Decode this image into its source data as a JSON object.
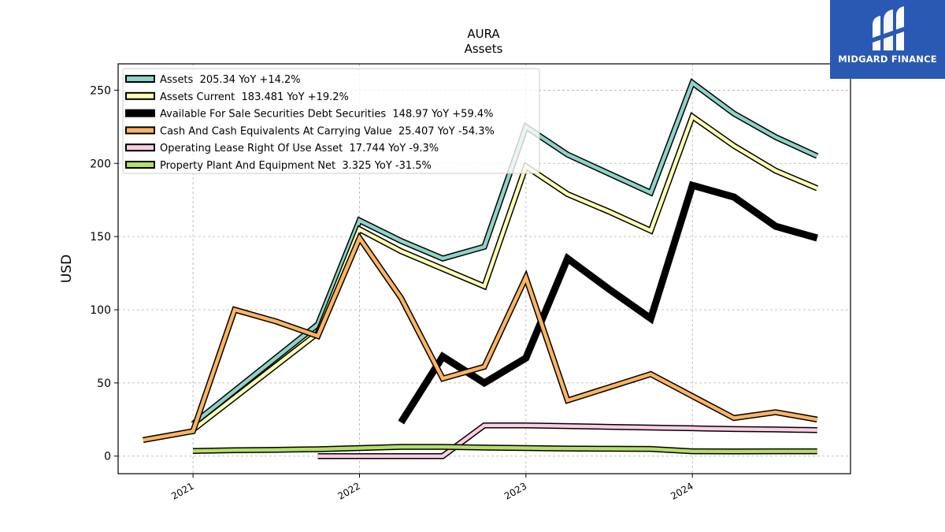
{
  "chart_data": {
    "type": "line",
    "title": "AURA",
    "subtitle": "Assets",
    "xlabel": "",
    "ylabel": "USD",
    "x_ticks": [
      {
        "label": "2021",
        "x": 2021.0
      },
      {
        "label": "2022",
        "x": 2022.0
      },
      {
        "label": "2023",
        "x": 2023.0
      },
      {
        "label": "2024",
        "x": 2024.0
      }
    ],
    "xlim": [
      2020.55,
      2024.95
    ],
    "ylim": [
      -12,
      268
    ],
    "y_ticks": [
      0,
      50,
      100,
      150,
      200,
      250
    ],
    "grid": true,
    "legend_position": "top-left",
    "series": [
      {
        "name": "Assets  205.34 YoY +14.2%",
        "color": "#8dd3c7",
        "style": "outlined",
        "points": [
          [
            2021.0,
            22
          ],
          [
            2021.75,
            90
          ],
          [
            2022.0,
            161
          ],
          [
            2022.25,
            147
          ],
          [
            2022.5,
            135
          ],
          [
            2022.75,
            143
          ],
          [
            2023.0,
            225
          ],
          [
            2023.25,
            206
          ],
          [
            2023.5,
            193
          ],
          [
            2023.75,
            180
          ],
          [
            2024.0,
            255
          ],
          [
            2024.25,
            234
          ],
          [
            2024.5,
            218
          ],
          [
            2024.75,
            205
          ]
        ]
      },
      {
        "name": "Assets Current  183.481 YoY +19.2%",
        "color": "#ffffb3",
        "style": "outlined",
        "points": [
          [
            2021.0,
            18
          ],
          [
            2021.75,
            84
          ],
          [
            2022.0,
            155
          ],
          [
            2022.25,
            140
          ],
          [
            2022.5,
            128
          ],
          [
            2022.75,
            116
          ],
          [
            2023.0,
            198
          ],
          [
            2023.25,
            179
          ],
          [
            2023.5,
            167
          ],
          [
            2023.75,
            154
          ],
          [
            2024.0,
            232
          ],
          [
            2024.25,
            212
          ],
          [
            2024.5,
            195
          ],
          [
            2024.75,
            183
          ]
        ]
      },
      {
        "name": "Available For Sale Securities Debt Securities  148.97 YoY +59.4%",
        "color": "#000000",
        "style": "thick",
        "points": [
          [
            2022.25,
            23
          ],
          [
            2022.5,
            68
          ],
          [
            2022.75,
            50
          ],
          [
            2023.0,
            67
          ],
          [
            2023.25,
            135
          ],
          [
            2023.5,
            114
          ],
          [
            2023.75,
            94
          ],
          [
            2024.0,
            185
          ],
          [
            2024.25,
            177
          ],
          [
            2024.5,
            157
          ],
          [
            2024.75,
            149
          ]
        ]
      },
      {
        "name": "Cash And Cash Equivalents At Carrying Value  25.407 YoY -54.3%",
        "color": "#fdb462",
        "style": "outlined",
        "points": [
          [
            2020.7,
            11
          ],
          [
            2021.0,
            17
          ],
          [
            2021.25,
            100
          ],
          [
            2021.5,
            92
          ],
          [
            2021.75,
            82
          ],
          [
            2022.0,
            149
          ],
          [
            2022.25,
            108
          ],
          [
            2022.5,
            53
          ],
          [
            2022.75,
            61
          ],
          [
            2023.0,
            122
          ],
          [
            2023.25,
            38
          ],
          [
            2023.5,
            47
          ],
          [
            2023.75,
            56
          ],
          [
            2024.0,
            41
          ],
          [
            2024.25,
            26
          ],
          [
            2024.5,
            30
          ],
          [
            2024.75,
            25
          ]
        ]
      },
      {
        "name": "Operating Lease Right Of Use Asset  17.744 YoY -9.3%",
        "color": "#fccde5",
        "style": "outlined",
        "points": [
          [
            2021.75,
            0
          ],
          [
            2022.0,
            0
          ],
          [
            2022.25,
            0
          ],
          [
            2022.5,
            0
          ],
          [
            2022.75,
            21
          ],
          [
            2023.0,
            21
          ],
          [
            2023.25,
            20.5
          ],
          [
            2023.5,
            20
          ],
          [
            2023.75,
            19.5
          ],
          [
            2024.0,
            19
          ],
          [
            2024.25,
            18.5
          ],
          [
            2024.5,
            18.2
          ],
          [
            2024.75,
            17.7
          ]
        ]
      },
      {
        "name": "Property Plant And Equipment Net  3.325 YoY -31.5%",
        "color": "#b3de69",
        "style": "outlined",
        "points": [
          [
            2021.0,
            3.5
          ],
          [
            2021.25,
            4
          ],
          [
            2021.5,
            4.3
          ],
          [
            2021.75,
            4.7
          ],
          [
            2022.0,
            5.5
          ],
          [
            2022.25,
            6.3
          ],
          [
            2022.5,
            6.3
          ],
          [
            2022.75,
            5.8
          ],
          [
            2023.0,
            5.5
          ],
          [
            2023.25,
            5.2
          ],
          [
            2023.5,
            5.0
          ],
          [
            2023.75,
            4.9
          ],
          [
            2024.0,
            3.3
          ],
          [
            2024.25,
            3.2
          ],
          [
            2024.5,
            3.3
          ],
          [
            2024.75,
            3.3
          ]
        ]
      }
    ]
  },
  "brand": {
    "name": "MIDGARD FINANCE",
    "logo_icon": "midgard-m-icon",
    "color": "#2a59b4"
  }
}
